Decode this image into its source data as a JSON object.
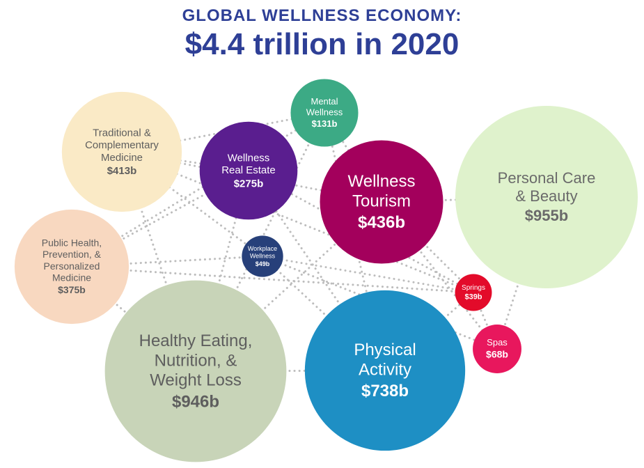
{
  "header": {
    "title_line1": "GLOBAL WELLNESS ECONOMY:",
    "title_line2": "$4.4 trillion in 2020"
  },
  "chart_data": {
    "type": "bubble",
    "title": "GLOBAL WELLNESS ECONOMY: $4.4 trillion in 2020",
    "unit": "$ billions",
    "segments": [
      {
        "id": "personal-care-beauty",
        "name": "Personal Care & Beauty",
        "lines": [
          "Personal Care",
          "& Beauty"
        ],
        "value": 955,
        "value_label": "$955b",
        "color": "#dff2cc",
        "text_color": "#6a6a6a"
      },
      {
        "id": "healthy-eating",
        "name": "Healthy Eating, Nutrition, & Weight Loss",
        "lines": [
          "Healthy Eating,",
          "Nutrition, &",
          "Weight Loss"
        ],
        "value": 946,
        "value_label": "$946b",
        "color": "#c8d4b8",
        "text_color": "#5e5e5e"
      },
      {
        "id": "physical-activity",
        "name": "Physical Activity",
        "lines": [
          "Physical",
          "Activity"
        ],
        "value": 738,
        "value_label": "$738b",
        "color": "#1e8fc4",
        "text_color": "#ffffff"
      },
      {
        "id": "wellness-tourism",
        "name": "Wellness Tourism",
        "lines": [
          "Wellness",
          "Tourism"
        ],
        "value": 436,
        "value_label": "$436b",
        "color": "#a3005c",
        "text_color": "#ffffff"
      },
      {
        "id": "traditional-medicine",
        "name": "Traditional & Complementary Medicine",
        "lines": [
          "Traditional &",
          "Complementary",
          "Medicine"
        ],
        "value": 413,
        "value_label": "$413b",
        "color": "#faeac6",
        "text_color": "#5e5e5e"
      },
      {
        "id": "public-health",
        "name": "Public Health, Prevention, & Personalized Medicine",
        "lines": [
          "Public Health,",
          "Prevention, &",
          "Personalized",
          "Medicine"
        ],
        "value": 375,
        "value_label": "$375b",
        "color": "#f8d8c0",
        "text_color": "#5e5e5e"
      },
      {
        "id": "wellness-real-estate",
        "name": "Wellness Real Estate",
        "lines": [
          "Wellness",
          "Real Estate"
        ],
        "value": 275,
        "value_label": "$275b",
        "color": "#5a1e8f",
        "text_color": "#ffffff"
      },
      {
        "id": "mental-wellness",
        "name": "Mental Wellness",
        "lines": [
          "Mental",
          "Wellness"
        ],
        "value": 131,
        "value_label": "$131b",
        "color": "#3caa85",
        "text_color": "#ffffff"
      },
      {
        "id": "spas",
        "name": "Spas",
        "lines": [
          "Spas"
        ],
        "value": 68,
        "value_label": "$68b",
        "color": "#e8175d",
        "text_color": "#ffffff"
      },
      {
        "id": "workplace-wellness",
        "name": "Workplace Wellness",
        "lines": [
          "Workplace",
          "Wellness"
        ],
        "value": 49,
        "value_label": "$49b",
        "color": "#27407a",
        "text_color": "#ffffff"
      },
      {
        "id": "springs",
        "name": "Springs",
        "lines": [
          "Springs"
        ],
        "value": 39,
        "value_label": "$39b",
        "color": "#e30b2a",
        "text_color": "#ffffff"
      }
    ]
  }
}
